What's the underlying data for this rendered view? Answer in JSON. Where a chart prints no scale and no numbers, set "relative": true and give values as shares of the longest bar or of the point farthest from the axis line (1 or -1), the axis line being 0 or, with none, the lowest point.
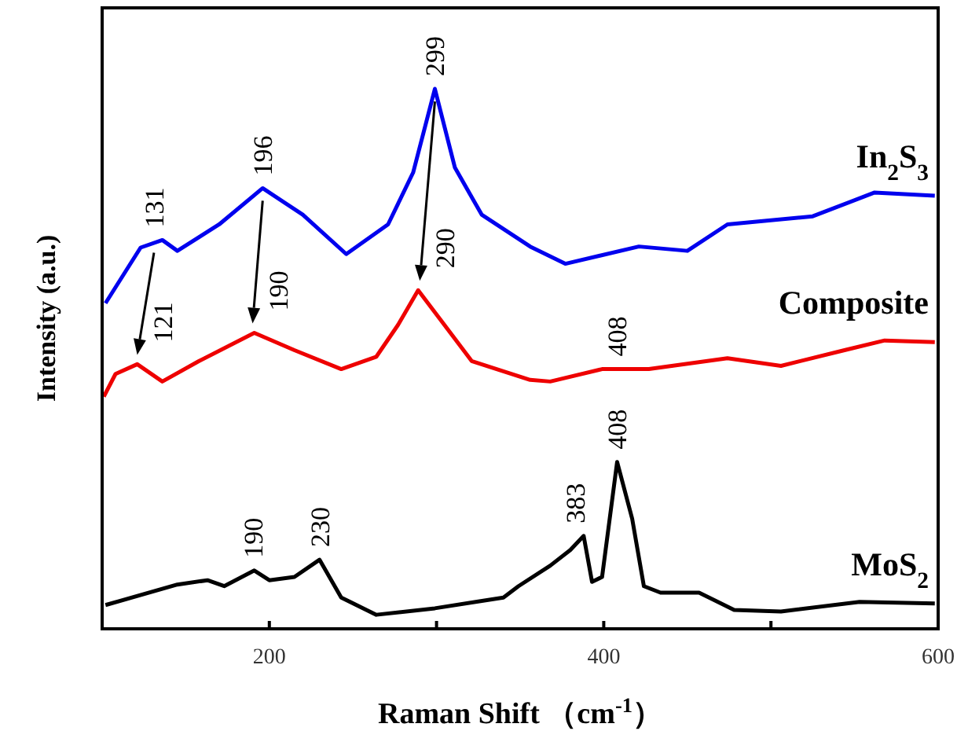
{
  "chart_data": {
    "type": "line",
    "relative": true,
    "xlabel": "Raman Shift （cm$^{-1}$）",
    "ylabel": "Intensity (a.u.)",
    "xlim": [
      100,
      600
    ],
    "xticks": [
      200,
      {
        "value": 300,
        "label": null
      },
      400,
      {
        "value": 500,
        "label": null
      },
      600
    ],
    "marker": "none",
    "line_style": "solid",
    "series": [
      {
        "name": "In$_{2}$S$_{3}$",
        "color": "#0000ee",
        "x": [
          102,
          123,
          136,
          145,
          170,
          196,
          220,
          246,
          271,
          286,
          299,
          311,
          327,
          356,
          377,
          421,
          450,
          474,
          525,
          562,
          598
        ],
        "values": [
          0.603,
          0.706,
          0.72,
          0.7,
          0.749,
          0.816,
          0.767,
          0.694,
          0.749,
          0.845,
          1.0,
          0.854,
          0.767,
          0.708,
          0.676,
          0.708,
          0.7,
          0.749,
          0.764,
          0.808,
          0.802
        ]
      },
      {
        "name": "Composite",
        "color": "#ee0000",
        "x": [
          101,
          108,
          121,
          136,
          158,
          191,
          215,
          243,
          264,
          277,
          289,
          302,
          321,
          356,
          368,
          399,
          427,
          474,
          506,
          544,
          568,
          598
        ],
        "values": [
          0.43,
          0.472,
          0.49,
          0.458,
          0.496,
          0.548,
          0.516,
          0.481,
          0.504,
          0.563,
          0.627,
          0.574,
          0.496,
          0.461,
          0.458,
          0.481,
          0.481,
          0.501,
          0.487,
          0.516,
          0.534,
          0.531
        ]
      },
      {
        "name": "MoS$_{2}$",
        "color": "#000000",
        "x": [
          102,
          145,
          163,
          173,
          191,
          200,
          215,
          230,
          243,
          264,
          299,
          340,
          349,
          368,
          380,
          388,
          393,
          399,
          408,
          417,
          424,
          434,
          457,
          478,
          506,
          553,
          598
        ],
        "values": [
          0.044,
          0.082,
          0.09,
          0.079,
          0.108,
          0.09,
          0.096,
          0.128,
          0.058,
          0.026,
          0.038,
          0.058,
          0.079,
          0.117,
          0.146,
          0.172,
          0.087,
          0.096,
          0.309,
          0.204,
          0.079,
          0.067,
          0.067,
          0.035,
          0.032,
          0.05,
          0.047
        ]
      }
    ],
    "annotations": [
      {
        "text": "131",
        "x": 131,
        "y": 0.72
      },
      {
        "text": "196",
        "x": 196,
        "y": 0.816
      },
      {
        "text": "299",
        "x": 299,
        "y": 1.0
      },
      {
        "text": "121",
        "x": 121,
        "y": 0.49
      },
      {
        "text": "190",
        "x": 190,
        "y": 0.548
      },
      {
        "text": "290",
        "x": 290,
        "y": 0.627
      },
      {
        "text": "408",
        "x": 408,
        "y": 0.481
      },
      {
        "text": "190",
        "x": 190,
        "y": 0.108
      },
      {
        "text": "230",
        "x": 230,
        "y": 0.128
      },
      {
        "text": "383",
        "x": 383,
        "y": 0.172
      },
      {
        "text": "408",
        "x": 408,
        "y": 0.309
      }
    ]
  }
}
